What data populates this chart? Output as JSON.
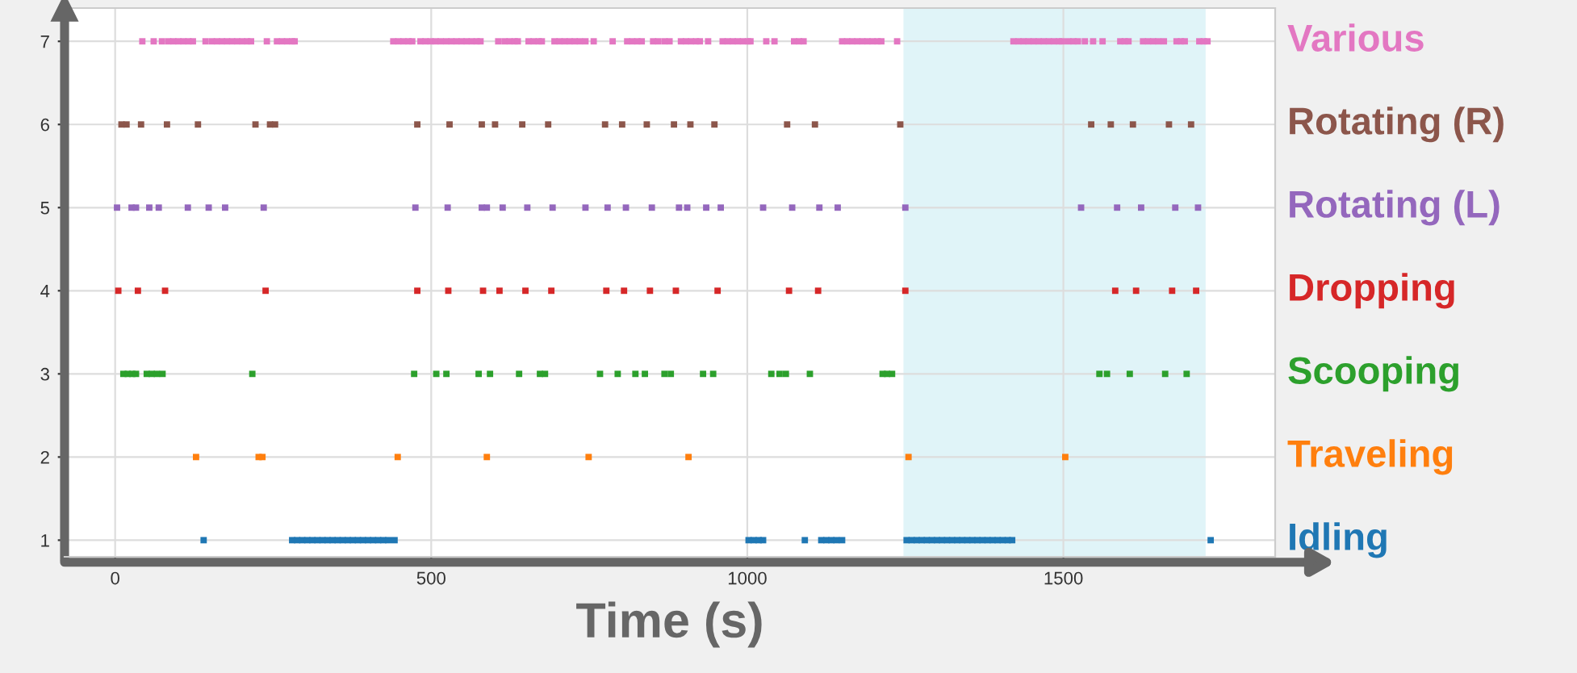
{
  "chart_data": {
    "type": "scatter",
    "xlabel": "Time (s)",
    "xlim": [
      -80,
      1835
    ],
    "ylim": [
      0.8,
      7.4
    ],
    "xticks": [
      0,
      500,
      1000,
      1500
    ],
    "yticks": [
      1,
      2,
      3,
      4,
      5,
      6,
      7
    ],
    "grid": true,
    "marker": "square",
    "bands": [
      {
        "axis": "x",
        "from": 1247,
        "to": 1725,
        "color": "#e0f4f8"
      }
    ],
    "series": [
      {
        "name": "Idling",
        "color": "#1f77b4",
        "x": [
          140,
          280,
          288,
          296,
          304,
          312,
          320,
          328,
          336,
          344,
          352,
          360,
          368,
          376,
          384,
          392,
          400,
          408,
          416,
          424,
          432,
          442,
          1002,
          1010,
          1018,
          1025,
          1091,
          1117,
          1125,
          1133,
          1141,
          1150,
          1252,
          1260,
          1268,
          1276,
          1284,
          1292,
          1300,
          1308,
          1316,
          1324,
          1332,
          1340,
          1348,
          1356,
          1364,
          1372,
          1380,
          1388,
          1396,
          1404,
          1412,
          1419,
          1733
        ],
        "values": [
          1,
          1,
          1,
          1,
          1,
          1,
          1,
          1,
          1,
          1,
          1,
          1,
          1,
          1,
          1,
          1,
          1,
          1,
          1,
          1,
          1,
          1,
          1,
          1,
          1,
          1,
          1,
          1,
          1,
          1,
          1,
          1,
          1,
          1,
          1,
          1,
          1,
          1,
          1,
          1,
          1,
          1,
          1,
          1,
          1,
          1,
          1,
          1,
          1,
          1,
          1,
          1,
          1,
          1,
          1
        ]
      },
      {
        "name": "Traveling",
        "color": "#ff7f0e",
        "x": [
          128,
          227,
          233,
          447,
          588,
          749,
          907,
          1255,
          1503
        ],
        "values": [
          2,
          2,
          2,
          2,
          2,
          2,
          2,
          2,
          2
        ]
      },
      {
        "name": "Scooping",
        "color": "#2ca02c",
        "x": [
          13,
          20,
          27,
          33,
          50,
          58,
          66,
          75,
          217,
          473,
          508,
          524,
          575,
          593,
          639,
          672,
          680,
          767,
          795,
          823,
          838,
          869,
          879,
          930,
          946,
          1038,
          1051,
          1061,
          1099,
          1214,
          1221,
          1229,
          1557,
          1569,
          1605,
          1661,
          1695
        ],
        "values": [
          3,
          3,
          3,
          3,
          3,
          3,
          3,
          3,
          3,
          3,
          3,
          3,
          3,
          3,
          3,
          3,
          3,
          3,
          3,
          3,
          3,
          3,
          3,
          3,
          3,
          3,
          3,
          3,
          3,
          3,
          3,
          3,
          3,
          3,
          3,
          3,
          3
        ]
      },
      {
        "name": "Dropping",
        "color": "#d62728",
        "x": [
          5,
          36,
          79,
          238,
          478,
          527,
          582,
          608,
          649,
          690,
          777,
          805,
          846,
          887,
          953,
          1066,
          1112,
          1250,
          1582,
          1615,
          1672,
          1710
        ],
        "values": [
          4,
          4,
          4,
          4,
          4,
          4,
          4,
          4,
          4,
          4,
          4,
          4,
          4,
          4,
          4,
          4,
          4,
          4,
          4,
          4,
          4,
          4
        ]
      },
      {
        "name": "Rotating (L)",
        "color": "#9467bd",
        "x": [
          3,
          26,
          33,
          54,
          69,
          115,
          148,
          174,
          235,
          475,
          526,
          580,
          588,
          613,
          652,
          692,
          744,
          779,
          808,
          849,
          892,
          905,
          935,
          958,
          1025,
          1071,
          1114,
          1143,
          1250,
          1528,
          1585,
          1623,
          1677,
          1713
        ],
        "values": [
          5,
          5,
          5,
          5,
          5,
          5,
          5,
          5,
          5,
          5,
          5,
          5,
          5,
          5,
          5,
          5,
          5,
          5,
          5,
          5,
          5,
          5,
          5,
          5,
          5,
          5,
          5,
          5,
          5,
          5,
          5,
          5,
          5,
          5
        ]
      },
      {
        "name": "Rotating (R)",
        "color": "#8c564b",
        "x": [
          10,
          18,
          41,
          82,
          131,
          222,
          245,
          253,
          478,
          529,
          580,
          601,
          644,
          685,
          775,
          802,
          841,
          884,
          910,
          948,
          1063,
          1107,
          1242,
          1544,
          1575,
          1610,
          1667,
          1702
        ],
        "values": [
          6,
          6,
          6,
          6,
          6,
          6,
          6,
          6,
          6,
          6,
          6,
          6,
          6,
          6,
          6,
          6,
          6,
          6,
          6,
          6,
          6,
          6,
          6,
          6,
          6,
          6,
          6,
          6
        ]
      },
      {
        "name": "Various",
        "color": "#e377c2",
        "x": [
          43,
          61,
          74,
          84,
          92,
          100,
          108,
          116,
          123,
          143,
          153,
          161,
          169,
          177,
          185,
          193,
          201,
          209,
          215,
          240,
          256,
          264,
          272,
          280,
          284,
          440,
          448,
          456,
          464,
          470,
          483,
          491,
          499,
          507,
          515,
          524,
          532,
          540,
          548,
          556,
          564,
          572,
          578,
          606,
          616,
          624,
          632,
          637,
          654,
          662,
          670,
          675,
          695,
          703,
          711,
          719,
          727,
          735,
          744,
          757,
          787,
          810,
          818,
          826,
          833,
          851,
          859,
          869,
          877,
          895,
          903,
          911,
          919,
          925,
          938,
          961,
          969,
          977,
          985,
          993,
          1001,
          1005,
          1030,
          1043,
          1074,
          1082,
          1089,
          1150,
          1158,
          1166,
          1174,
          1182,
          1190,
          1198,
          1206,
          1212,
          1237,
          1421,
          1429,
          1437,
          1445,
          1453,
          1461,
          1469,
          1477,
          1485,
          1493,
          1498,
          1508,
          1516,
          1523,
          1534,
          1547,
          1562,
          1590,
          1597,
          1603,
          1626,
          1634,
          1642,
          1650,
          1659,
          1679,
          1686,
          1692,
          1715,
          1722,
          1728
        ],
        "values": [
          7,
          7,
          7,
          7,
          7,
          7,
          7,
          7,
          7,
          7,
          7,
          7,
          7,
          7,
          7,
          7,
          7,
          7,
          7,
          7,
          7,
          7,
          7,
          7,
          7,
          7,
          7,
          7,
          7,
          7,
          7,
          7,
          7,
          7,
          7,
          7,
          7,
          7,
          7,
          7,
          7,
          7,
          7,
          7,
          7,
          7,
          7,
          7,
          7,
          7,
          7,
          7,
          7,
          7,
          7,
          7,
          7,
          7,
          7,
          7,
          7,
          7,
          7,
          7,
          7,
          7,
          7,
          7,
          7,
          7,
          7,
          7,
          7,
          7,
          7,
          7,
          7,
          7,
          7,
          7,
          7,
          7,
          7,
          7,
          7,
          7,
          7,
          7,
          7,
          7,
          7,
          7,
          7,
          7,
          7,
          7,
          7,
          7,
          7,
          7,
          7,
          7,
          7,
          7,
          7,
          7,
          7,
          7,
          7,
          7,
          7,
          7,
          7,
          7,
          7,
          7,
          7,
          7,
          7,
          7,
          7,
          7,
          7,
          7,
          7,
          7,
          7,
          7
        ]
      }
    ]
  }
}
